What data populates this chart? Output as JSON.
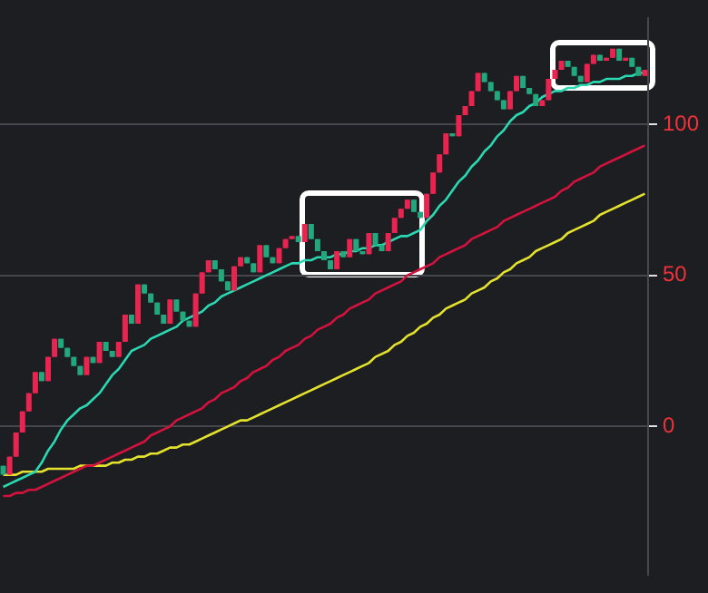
{
  "chart_data": {
    "type": "candlestick",
    "categories": [
      null,
      null,
      null,
      null,
      null,
      null,
      null,
      null,
      null,
      null,
      null,
      null,
      null,
      null,
      null,
      null,
      null,
      null,
      null,
      null,
      null,
      null,
      null,
      null,
      null,
      null,
      null,
      null,
      null,
      null,
      null,
      null,
      null,
      null,
      null,
      null,
      null,
      null,
      null,
      null,
      null,
      null,
      null,
      null,
      null,
      null,
      null,
      null,
      null,
      null,
      null,
      null,
      null,
      null,
      null,
      null,
      null,
      null,
      null,
      null,
      null,
      null,
      null,
      null,
      null,
      null,
      null,
      null,
      null,
      null,
      null,
      null,
      null,
      null,
      null,
      null,
      null,
      null,
      null,
      null,
      null,
      null,
      null,
      null,
      null,
      null,
      null,
      null,
      null,
      null,
      null,
      null,
      null,
      null,
      null,
      null,
      null,
      null,
      null,
      null,
      null
    ],
    "ylim": [
      -49,
      135
    ],
    "yticks": [
      0,
      50,
      100
    ],
    "grid": "y",
    "tick_labels": "y",
    "series": [
      {
        "ohlc": [
          [
            -13,
            -13,
            -16,
            -16
          ],
          [
            -16,
            -10,
            -16,
            -10
          ],
          [
            -10,
            -2,
            -10,
            -2
          ],
          [
            -2,
            5,
            -2,
            5
          ],
          [
            5,
            11,
            5,
            11
          ],
          [
            11,
            18,
            11,
            18
          ],
          [
            18,
            18,
            15,
            15
          ],
          [
            15,
            23,
            15,
            23
          ],
          [
            23,
            29,
            23,
            29
          ],
          [
            29,
            29,
            26,
            26
          ],
          [
            26,
            26,
            23,
            23
          ],
          [
            23,
            23,
            20,
            20
          ],
          [
            20,
            20,
            17,
            17
          ],
          [
            17,
            23,
            17,
            23
          ],
          [
            23,
            23,
            21,
            21
          ],
          [
            21,
            28,
            21,
            28
          ],
          [
            28,
            28,
            25,
            25
          ],
          [
            25,
            25,
            23,
            23
          ],
          [
            23,
            28,
            23,
            28
          ],
          [
            28,
            37,
            28,
            37
          ],
          [
            37,
            37,
            34,
            34
          ],
          [
            34,
            47,
            34,
            47
          ],
          [
            47,
            47,
            44,
            44
          ],
          [
            44,
            44,
            41,
            41
          ],
          [
            41,
            41,
            37,
            37
          ],
          [
            37,
            37,
            34,
            34
          ],
          [
            34,
            42,
            34,
            42
          ],
          [
            42,
            42,
            38,
            38
          ],
          [
            38,
            38,
            35,
            35
          ],
          [
            35,
            35,
            33,
            33
          ],
          [
            33,
            44,
            33,
            44
          ],
          [
            44,
            51,
            44,
            51
          ],
          [
            51,
            55,
            51,
            55
          ],
          [
            55,
            55,
            52,
            52
          ],
          [
            52,
            52,
            48,
            48
          ],
          [
            48,
            48,
            45,
            45
          ],
          [
            45,
            53,
            45,
            53
          ],
          [
            53,
            56,
            53,
            56
          ],
          [
            56,
            56,
            54,
            54
          ],
          [
            54,
            54,
            51,
            51
          ],
          [
            51,
            60,
            51,
            60
          ],
          [
            60,
            60,
            56,
            56
          ],
          [
            56,
            56,
            54,
            54
          ],
          [
            54,
            59,
            54,
            59
          ],
          [
            59,
            62,
            59,
            62
          ],
          [
            62,
            63,
            62,
            63
          ],
          [
            63,
            63,
            61,
            61
          ],
          [
            61,
            67,
            61,
            67
          ],
          [
            67,
            67,
            62,
            62
          ],
          [
            62,
            62,
            58,
            58
          ],
          [
            58,
            58,
            55,
            55
          ],
          [
            55,
            55,
            52,
            52
          ],
          [
            52,
            58,
            52,
            58
          ],
          [
            58,
            58,
            56,
            56
          ],
          [
            56,
            62,
            56,
            62
          ],
          [
            62,
            62,
            58,
            58
          ],
          [
            58,
            58,
            57,
            57
          ],
          [
            57,
            64,
            57,
            64
          ],
          [
            64,
            64,
            60,
            60
          ],
          [
            60,
            60,
            58,
            58
          ],
          [
            58,
            64,
            58,
            64
          ],
          [
            64,
            69,
            64,
            69
          ],
          [
            69,
            72,
            69,
            72
          ],
          [
            72,
            75,
            72,
            75
          ],
          [
            75,
            75,
            71,
            71
          ],
          [
            71,
            71,
            69,
            69
          ],
          [
            69,
            77,
            69,
            77
          ],
          [
            77,
            84,
            77,
            84
          ],
          [
            84,
            90,
            84,
            90
          ],
          [
            90,
            97,
            90,
            97
          ],
          [
            97,
            97,
            96,
            96
          ],
          [
            96,
            103,
            96,
            103
          ],
          [
            103,
            106,
            103,
            106
          ],
          [
            106,
            111,
            106,
            111
          ],
          [
            111,
            117,
            111,
            117
          ],
          [
            117,
            117,
            114,
            114
          ],
          [
            114,
            114,
            111,
            111
          ],
          [
            111,
            111,
            108,
            108
          ],
          [
            108,
            108,
            105,
            105
          ],
          [
            105,
            111,
            105,
            111
          ],
          [
            111,
            116,
            111,
            116
          ],
          [
            116,
            116,
            112,
            112
          ],
          [
            112,
            112,
            110,
            110
          ],
          [
            110,
            110,
            106,
            106
          ],
          [
            106,
            108,
            106,
            108
          ],
          [
            108,
            115,
            108,
            115
          ],
          [
            115,
            118,
            115,
            118
          ],
          [
            118,
            121,
            118,
            121
          ],
          [
            121,
            121,
            119,
            119
          ],
          [
            119,
            119,
            116,
            116
          ],
          [
            116,
            116,
            114,
            114
          ],
          [
            114,
            120,
            114,
            120
          ],
          [
            120,
            123,
            120,
            123
          ],
          [
            123,
            123,
            121,
            121
          ],
          [
            121,
            122,
            121,
            122
          ],
          [
            122,
            125,
            122,
            125
          ],
          [
            125,
            125,
            121,
            121
          ],
          [
            121,
            122,
            121,
            122
          ],
          [
            122,
            122,
            119,
            119
          ],
          [
            119,
            119,
            116,
            116
          ],
          [
            116,
            118,
            116,
            118
          ]
        ],
        "colors": [
          "#22a87c",
          "#ea2450",
          "#ea2450",
          "#ea2450",
          "#ea2450",
          "#ea2450",
          "#22a87c",
          "#ea2450",
          "#ea2450",
          "#22a87c",
          "#22a87c",
          "#22a87c",
          "#22a87c",
          "#ea2450",
          "#22a87c",
          "#ea2450",
          "#22a87c",
          "#22a87c",
          "#ea2450",
          "#ea2450",
          "#22a87c",
          "#ea2450",
          "#22a87c",
          "#22a87c",
          "#22a87c",
          "#22a87c",
          "#ea2450",
          "#22a87c",
          "#22a87c",
          "#22a87c",
          "#ea2450",
          "#ea2450",
          "#ea2450",
          "#22a87c",
          "#22a87c",
          "#22a87c",
          "#ea2450",
          "#ea2450",
          "#22a87c",
          "#22a87c",
          "#ea2450",
          "#22a87c",
          "#22a87c",
          "#ea2450",
          "#ea2450",
          "#ea2450",
          "#22a87c",
          "#ea2450",
          "#22a87c",
          "#22a87c",
          "#22a87c",
          "#22a87c",
          "#ea2450",
          "#22a87c",
          "#ea2450",
          "#22a87c",
          "#22a87c",
          "#ea2450",
          "#22a87c",
          "#22a87c",
          "#ea2450",
          "#ea2450",
          "#ea2450",
          "#ea2450",
          "#22a87c",
          "#22a87c",
          "#ea2450",
          "#ea2450",
          "#ea2450",
          "#ea2450",
          "#22a87c",
          "#ea2450",
          "#ea2450",
          "#ea2450",
          "#ea2450",
          "#22a87c",
          "#22a87c",
          "#22a87c",
          "#22a87c",
          "#ea2450",
          "#ea2450",
          "#22a87c",
          "#22a87c",
          "#22a87c",
          "#ea2450",
          "#ea2450",
          "#ea2450",
          "#ea2450",
          "#22a87c",
          "#22a87c",
          "#22a87c",
          "#ea2450",
          "#ea2450",
          "#22a87c",
          "#ea2450",
          "#ea2450",
          "#22a87c",
          "#ea2450",
          "#22a87c",
          "#22a87c",
          "#ea2450"
        ]
      },
      {
        "type": "line",
        "color": "#2ad8b2",
        "values": [
          -20,
          -19,
          -18,
          -17,
          -16,
          -15,
          -12,
          -8,
          -5,
          -1,
          2,
          4,
          6,
          7,
          9,
          11,
          14,
          17,
          19,
          22,
          25,
          26,
          27,
          29,
          30,
          31,
          32,
          33,
          35,
          36,
          37,
          38,
          40,
          41,
          43,
          44,
          45,
          46,
          47,
          48,
          49,
          50,
          51,
          52,
          53,
          54,
          54,
          55,
          55,
          56,
          56,
          56,
          57,
          57,
          58,
          58,
          59,
          59,
          60,
          60,
          61,
          62,
          63,
          63,
          64,
          65,
          68,
          70,
          73,
          75,
          78,
          81,
          83,
          86,
          88,
          91,
          93,
          96,
          98,
          101,
          103,
          104,
          106,
          107,
          109,
          110,
          111,
          111,
          112,
          112,
          113,
          113,
          114,
          114,
          115,
          115,
          115,
          116,
          116,
          117,
          117
        ]
      },
      {
        "type": "line",
        "color": "#d4123e",
        "values": [
          -23,
          -23,
          -22,
          -22,
          -21,
          -21,
          -20,
          -19,
          -18,
          -17,
          -16,
          -15,
          -14,
          -13,
          -13,
          -12,
          -11,
          -10,
          -9,
          -8,
          -7,
          -6,
          -5,
          -3,
          -2,
          -1,
          0,
          2,
          3,
          4,
          5,
          6,
          8,
          9,
          11,
          12,
          13,
          15,
          16,
          18,
          19,
          20,
          22,
          23,
          25,
          26,
          27,
          29,
          30,
          32,
          33,
          34,
          36,
          37,
          39,
          40,
          41,
          42,
          44,
          45,
          46,
          47,
          48,
          50,
          51,
          52,
          53,
          54,
          56,
          57,
          58,
          59,
          60,
          62,
          63,
          64,
          65,
          66,
          68,
          69,
          70,
          71,
          72,
          73,
          74,
          75,
          76,
          78,
          79,
          81,
          82,
          83,
          84,
          86,
          87,
          88,
          89,
          90,
          91,
          92,
          93
        ]
      },
      {
        "type": "line",
        "color": "#e4e22c",
        "values": [
          -16,
          -16,
          -16,
          -15,
          -15,
          -15,
          -15,
          -14,
          -14,
          -14,
          -14,
          -14,
          -13,
          -13,
          -13,
          -13,
          -13,
          -12,
          -12,
          -11,
          -11,
          -10,
          -10,
          -9,
          -9,
          -8,
          -7,
          -7,
          -6,
          -6,
          -5,
          -4,
          -3,
          -2,
          -1,
          0,
          1,
          2,
          2,
          3,
          4,
          5,
          6,
          7,
          8,
          9,
          10,
          11,
          12,
          13,
          14,
          15,
          16,
          17,
          18,
          19,
          20,
          21,
          23,
          24,
          25,
          27,
          28,
          30,
          31,
          33,
          34,
          36,
          37,
          39,
          40,
          41,
          42,
          44,
          45,
          46,
          48,
          49,
          51,
          52,
          54,
          55,
          56,
          58,
          59,
          60,
          61,
          62,
          64,
          65,
          66,
          67,
          68,
          70,
          71,
          72,
          73,
          74,
          75,
          76,
          77
        ]
      }
    ]
  }
}
